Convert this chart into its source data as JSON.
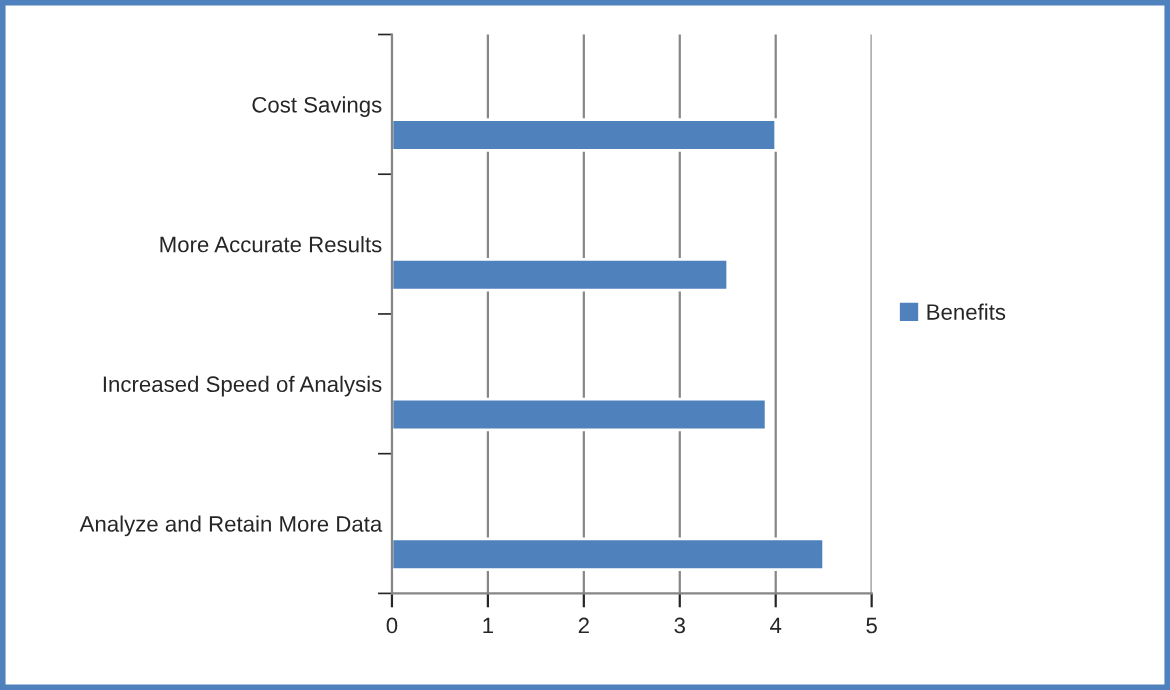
{
  "chart_data": {
    "type": "bar",
    "orientation": "horizontal",
    "categories": [
      "Cost Savings",
      "More Accurate Results",
      "Increased Speed of Analysis",
      "Analyze and Retain More Data"
    ],
    "series": [
      {
        "name": "Benefits",
        "color": "#4f81bd",
        "values": [
          4.0,
          3.5,
          3.9,
          4.5
        ]
      }
    ],
    "xlim": [
      0,
      5
    ],
    "xticks": [
      0,
      1,
      2,
      3,
      4,
      5
    ],
    "grid": "x",
    "legend": "right"
  }
}
